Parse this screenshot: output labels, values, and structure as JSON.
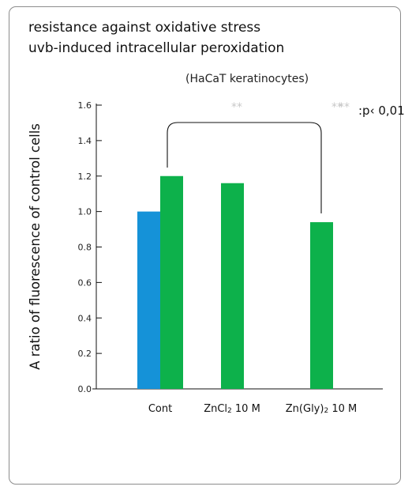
{
  "chart_data": {
    "type": "bar",
    "title": [
      "resistance against oxidative stress",
      "uvb-induced intracellular peroxidation"
    ],
    "subtitle": "(HaCaT keratinocytes)",
    "ylabel": "A ratio of fluorescence of control cells",
    "xlabel": "",
    "ylim": [
      0.0,
      1.6
    ],
    "yticks": [
      "0.0",
      "0.2",
      "0.4",
      "0.6",
      "0.8",
      "1.0",
      "1.2",
      "1.4",
      "1.6"
    ],
    "categories": [
      {
        "label": "Cont",
        "sub": ""
      },
      {
        "label": "ZnCl",
        "sub": "2",
        "suffix": " 10  M"
      },
      {
        "label": "Zn(Gly)",
        "sub": "2",
        "suffix": " 10  M"
      }
    ],
    "series": [
      {
        "color": "#1592d8",
        "values": [
          1.0,
          null,
          null
        ]
      },
      {
        "color": "#0db14b",
        "values": [
          1.2,
          1.16,
          0.94
        ]
      }
    ],
    "significance": {
      "stars": [
        "**",
        "**"
      ],
      "legend_stars": "**",
      "legend_text": ":p‹ 0,01"
    },
    "grid": false,
    "legend": "none"
  }
}
